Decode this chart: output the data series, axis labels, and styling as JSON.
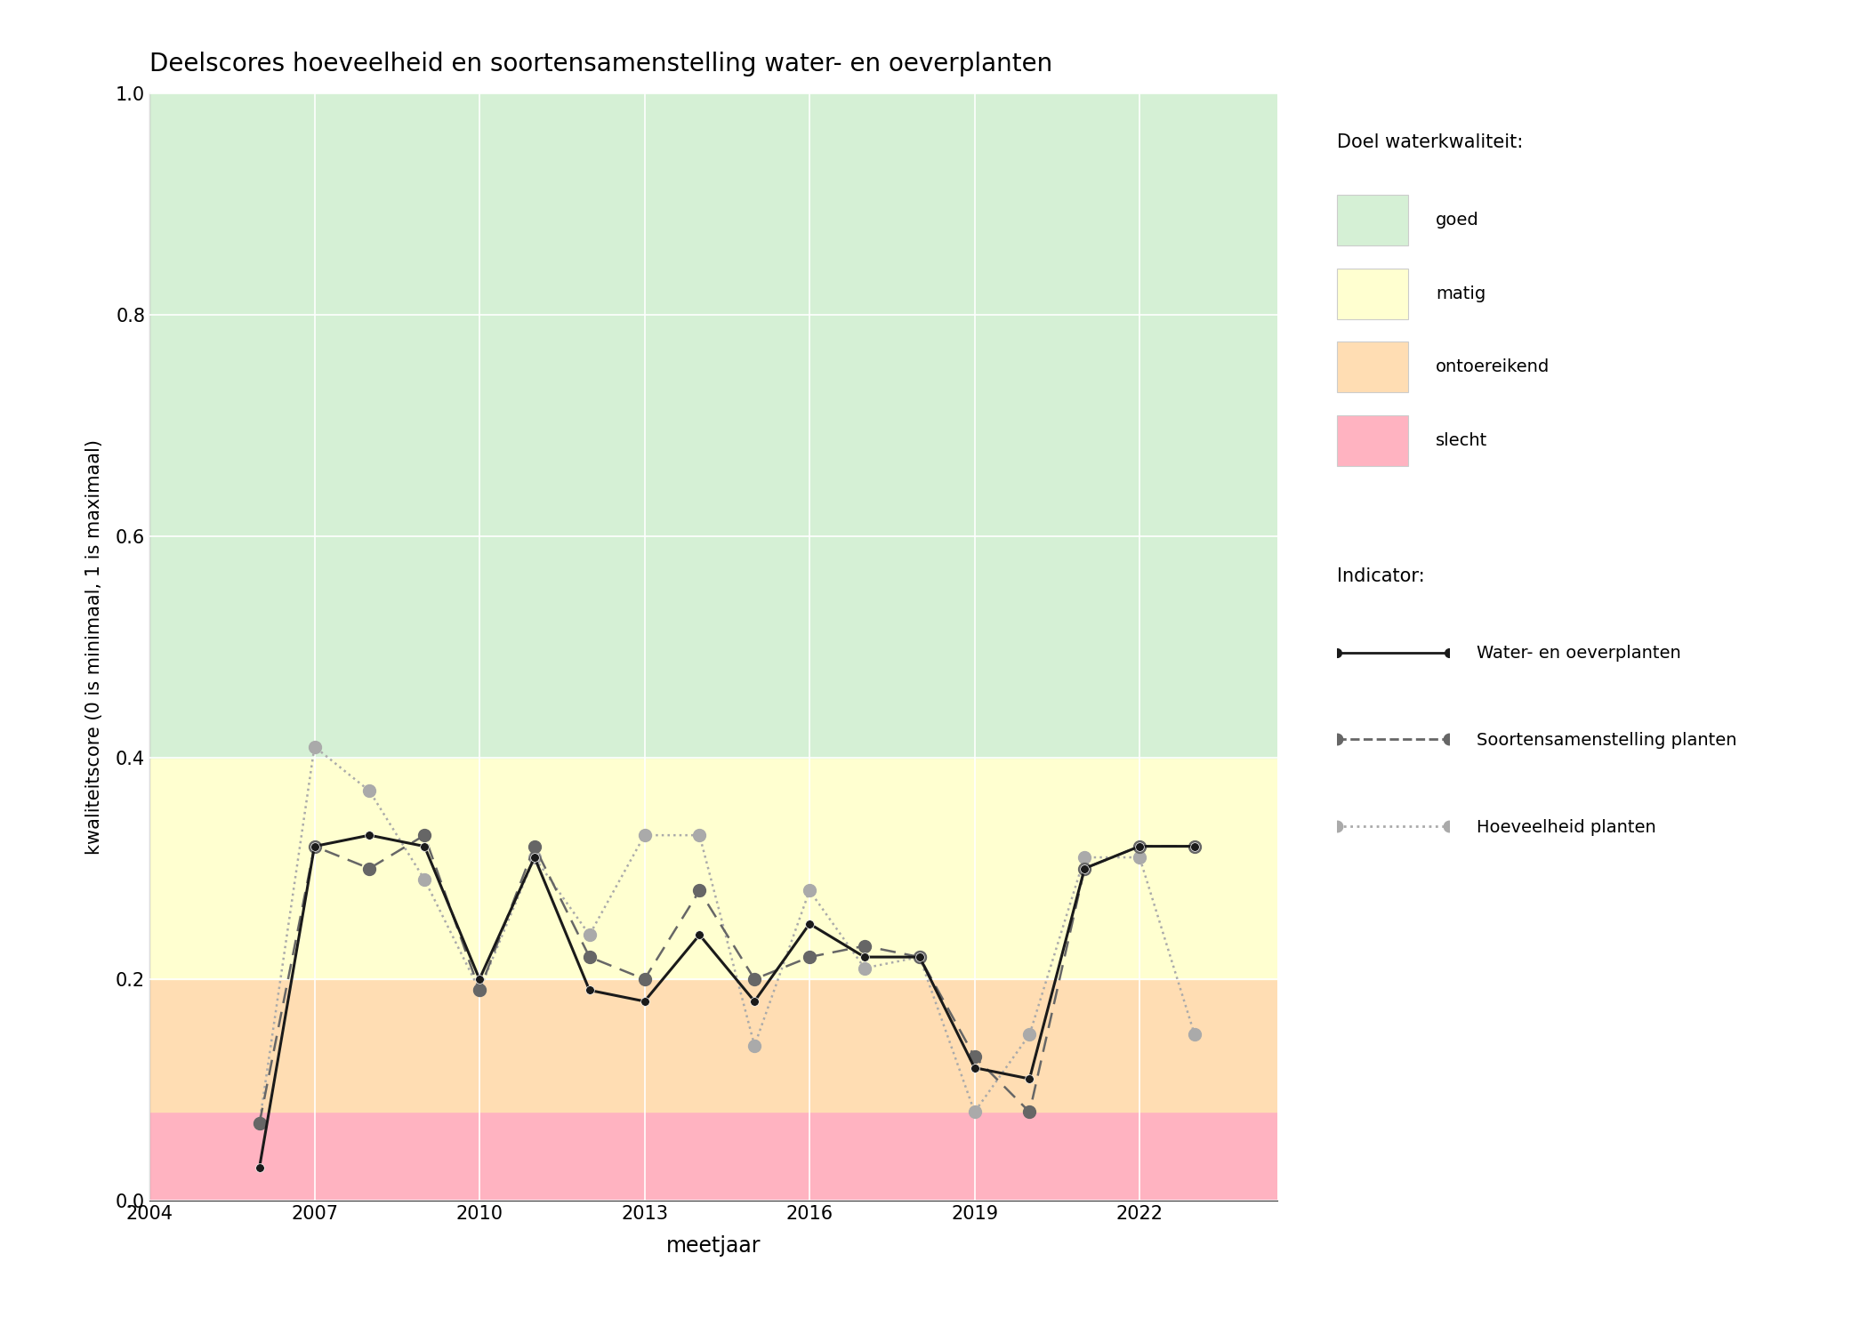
{
  "title": "Deelscores hoeveelheid en soortensamenstelling water- en oeverplanten",
  "xlabel": "meetjaar",
  "ylabel": "kwaliteitscore (0 is minimaal, 1 is maximaal)",
  "xlim": [
    2004,
    2024.5
  ],
  "ylim": [
    0.0,
    1.0
  ],
  "xticks": [
    2004,
    2007,
    2010,
    2013,
    2016,
    2019,
    2022
  ],
  "yticks": [
    0.0,
    0.2,
    0.4,
    0.6,
    0.8,
    1.0
  ],
  "background_color": "#ffffff",
  "quality_bands": [
    {
      "ymin": 0.0,
      "ymax": 0.08,
      "color": "#ffb3c1",
      "label": "slecht"
    },
    {
      "ymin": 0.08,
      "ymax": 0.2,
      "color": "#ffddb3",
      "label": "ontoereikend"
    },
    {
      "ymin": 0.2,
      "ymax": 0.4,
      "color": "#ffffd0",
      "label": "matig"
    },
    {
      "ymin": 0.4,
      "ymax": 1.0,
      "color": "#d5f0d5",
      "label": "goed"
    }
  ],
  "water_oever": {
    "years": [
      2006,
      2007,
      2008,
      2009,
      2010,
      2011,
      2012,
      2013,
      2014,
      2015,
      2016,
      2017,
      2018,
      2019,
      2020,
      2021,
      2022,
      2023
    ],
    "values": [
      0.03,
      0.32,
      0.33,
      0.32,
      0.2,
      0.31,
      0.19,
      0.18,
      0.24,
      0.18,
      0.25,
      0.22,
      0.22,
      0.12,
      0.11,
      0.3,
      0.32,
      0.32
    ],
    "color": "#1a1a1a",
    "linestyle": "-",
    "linewidth": 2.2,
    "marker": "o",
    "markersize": 7,
    "label": "Water- en oeverplanten"
  },
  "soortensamenstelling": {
    "years": [
      2006,
      2007,
      2008,
      2009,
      2010,
      2011,
      2012,
      2013,
      2014,
      2015,
      2016,
      2017,
      2018,
      2019,
      2020,
      2021,
      2022,
      2023
    ],
    "values": [
      0.07,
      0.32,
      0.3,
      0.33,
      0.19,
      0.32,
      0.22,
      0.2,
      0.28,
      0.2,
      0.22,
      0.23,
      0.22,
      0.13,
      0.08,
      0.3,
      0.32,
      0.32
    ],
    "color": "#666666",
    "linestyle": "--",
    "linewidth": 1.8,
    "marker": "o",
    "markersize": 10,
    "label": "Soortensamenstelling planten"
  },
  "hoeveelheid": {
    "years": [
      2006,
      2007,
      2008,
      2009,
      2010,
      2011,
      2012,
      2013,
      2014,
      2015,
      2016,
      2017,
      2018,
      2019,
      2020,
      2021,
      2022,
      2023
    ],
    "values": [
      0.07,
      0.41,
      0.37,
      0.29,
      0.19,
      0.31,
      0.24,
      0.33,
      0.33,
      0.14,
      0.28,
      0.21,
      0.22,
      0.08,
      0.15,
      0.31,
      0.31,
      0.15
    ],
    "color": "#aaaaaa",
    "linestyle": ":",
    "linewidth": 1.8,
    "marker": "o",
    "markersize": 10,
    "label": "Hoeveelheid planten"
  },
  "legend_doel_title": "Doel waterkwaliteit:",
  "legend_indicator_title": "Indicator:",
  "doel_colors": [
    "#d5f0d5",
    "#ffffd0",
    "#ffddb3",
    "#ffb3c1"
  ],
  "doel_labels": [
    "goed",
    "matig",
    "ontoereikend",
    "slecht"
  ]
}
